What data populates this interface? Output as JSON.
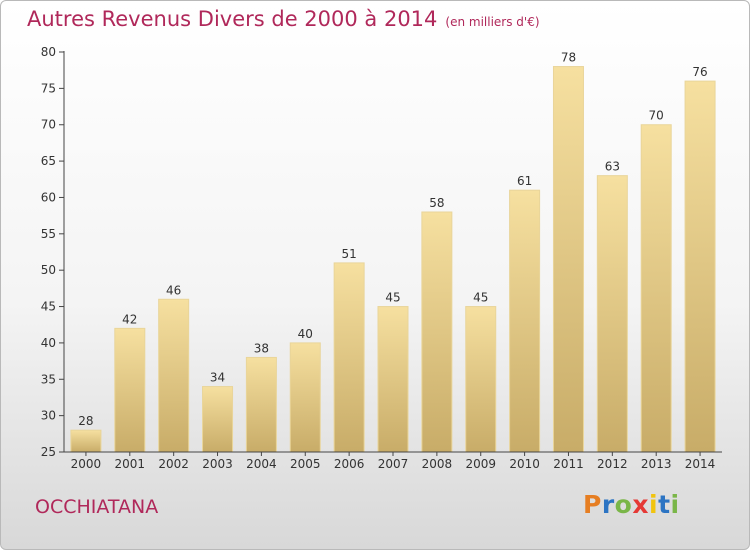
{
  "header": {
    "title": "Autres Revenus Divers de 2000 à 2014",
    "unit": "(en milliers d'€)"
  },
  "footer": {
    "commune": "OCCHIATANA",
    "logo_text": "Proxiti",
    "logo_colors": [
      "#e67e22",
      "#2c74c3",
      "#7ab648",
      "#e53935",
      "#f1c40f",
      "#2c74c3",
      "#7ab648"
    ]
  },
  "chart_data": {
    "type": "bar",
    "title": "Autres Revenus Divers de 2000 à 2014",
    "categories": [
      "2000",
      "2001",
      "2002",
      "2003",
      "2004",
      "2005",
      "2006",
      "2007",
      "2008",
      "2009",
      "2010",
      "2011",
      "2012",
      "2013",
      "2014"
    ],
    "values": [
      28,
      42,
      46,
      34,
      38,
      40,
      51,
      45,
      58,
      45,
      61,
      78,
      63,
      70,
      76
    ],
    "ylim": [
      25,
      80
    ],
    "yticks": [
      25,
      30,
      35,
      40,
      45,
      50,
      55,
      60,
      65,
      70,
      75,
      80
    ],
    "grid": false,
    "colors": {
      "bar_top": "#f6e0a0",
      "bar_bottom": "#c8ac68",
      "axis": "#444444"
    }
  }
}
